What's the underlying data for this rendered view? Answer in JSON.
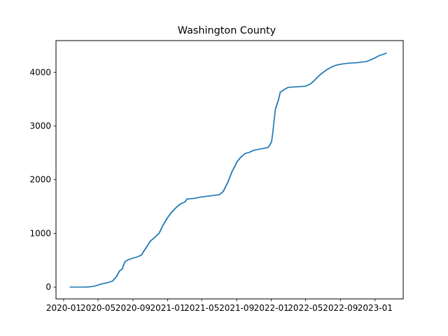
{
  "chart_data": {
    "type": "line",
    "title": "Washington County",
    "xlabel": "",
    "ylabel": "",
    "grid": false,
    "line_color": "#1f77b4",
    "x_ticks": [
      "2020-01",
      "2020-05",
      "2020-09",
      "2021-01",
      "2021-05",
      "2021-09",
      "2022-01",
      "2022-05",
      "2022-09",
      "2023-01"
    ],
    "y_ticks": [
      0,
      1000,
      2000,
      3000,
      4000
    ],
    "xlim": [
      "2019-12-05",
      "2023-04-10"
    ],
    "ylim": [
      -220,
      4590
    ],
    "series": [
      {
        "x": [
          "2020-01-22",
          "2020-03-15",
          "2020-04-01",
          "2020-04-20",
          "2020-05-10",
          "2020-06-01",
          "2020-06-20",
          "2020-07-05",
          "2020-07-15",
          "2020-07-25",
          "2020-08-01",
          "2020-08-05",
          "2020-08-15",
          "2020-09-01",
          "2020-09-15",
          "2020-10-01",
          "2020-10-05",
          "2020-10-20",
          "2020-11-01",
          "2020-11-15",
          "2020-12-01",
          "2020-12-15",
          "2021-01-01",
          "2021-01-15",
          "2021-02-01",
          "2021-02-15",
          "2021-03-01",
          "2021-03-10",
          "2021-04-01",
          "2021-05-01",
          "2021-06-01",
          "2021-07-01",
          "2021-07-15",
          "2021-08-01",
          "2021-08-15",
          "2021-08-25",
          "2021-09-01",
          "2021-09-15",
          "2021-10-01",
          "2021-10-15",
          "2021-11-01",
          "2021-12-01",
          "2021-12-20",
          "2022-01-01",
          "2022-01-05",
          "2022-01-10",
          "2022-01-15",
          "2022-01-25",
          "2022-02-01",
          "2022-02-15",
          "2022-03-01",
          "2022-04-01",
          "2022-05-01",
          "2022-05-20",
          "2022-06-01",
          "2022-06-20",
          "2022-07-15",
          "2022-08-01",
          "2022-08-15",
          "2022-09-01",
          "2022-09-15",
          "2022-10-01",
          "2022-11-01",
          "2022-12-01",
          "2022-12-20",
          "2023-01-01",
          "2023-01-15",
          "2023-02-01",
          "2023-02-10"
        ],
        "y": [
          0,
          0,
          5,
          20,
          55,
          80,
          110,
          200,
          300,
          340,
          450,
          480,
          510,
          540,
          560,
          600,
          640,
          760,
          860,
          920,
          1000,
          1150,
          1300,
          1400,
          1490,
          1550,
          1580,
          1640,
          1650,
          1680,
          1700,
          1720,
          1780,
          1960,
          2150,
          2250,
          2330,
          2420,
          2490,
          2510,
          2550,
          2580,
          2600,
          2700,
          2850,
          3100,
          3320,
          3480,
          3630,
          3680,
          3720,
          3730,
          3740,
          3790,
          3850,
          3950,
          4050,
          4100,
          4130,
          4150,
          4160,
          4170,
          4180,
          4200,
          4240,
          4270,
          4310,
          4340,
          4360
        ]
      }
    ]
  }
}
